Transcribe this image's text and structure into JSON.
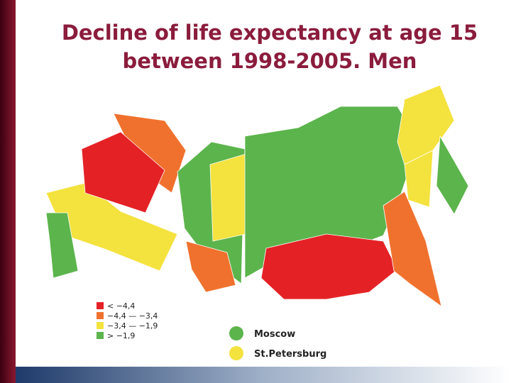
{
  "header": {
    "title_lines": [
      "Decline of life expectancy at age 15",
      "between 1998-2005. Men"
    ]
  },
  "legend": [
    {
      "label": "< −4,4",
      "color": "#e42226"
    },
    {
      "label": "−4,4 — −3,4",
      "color": "#f0712e"
    },
    {
      "label": "−3,4 — −1,9",
      "color": "#f4e23e"
    },
    {
      "label": "> −1,9",
      "color": "#5cb44c"
    }
  ],
  "markers": [
    {
      "label": "Moscow",
      "color": "#5cb44c"
    },
    {
      "label": "St.Petersburg",
      "color": "#f4e23e"
    }
  ]
}
